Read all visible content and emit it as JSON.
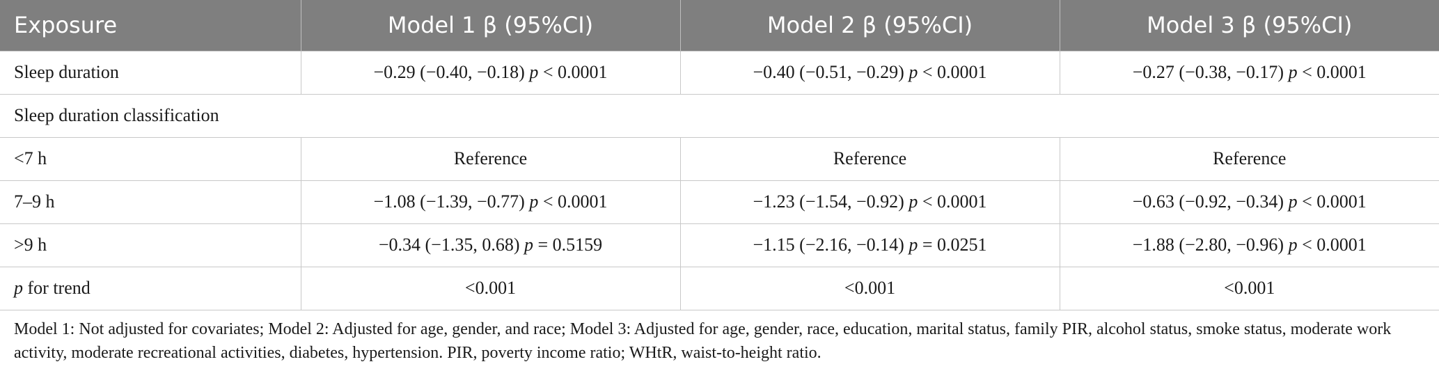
{
  "header": {
    "exposure": "Exposure",
    "model1": "Model 1 β (95%CI)",
    "model2": "Model 2 β (95%CI)",
    "model3": "Model 3 β (95%CI)"
  },
  "rows": {
    "sleep_duration": {
      "label": "Sleep duration",
      "m1": "−0.29 (−0.40, −0.18) p < 0.0001",
      "m2": "−0.40 (−0.51, −0.29) p < 0.0001",
      "m3": "−0.27 (−0.38, −0.17) p < 0.0001"
    },
    "classification": {
      "label": "Sleep duration classification"
    },
    "lt7": {
      "label": "<7 h",
      "m1": "Reference",
      "m2": "Reference",
      "m3": "Reference"
    },
    "r7to9": {
      "label": "7–9 h",
      "m1": "−1.08 (−1.39, −0.77) p < 0.0001",
      "m2": "−1.23 (−1.54, −0.92) p < 0.0001",
      "m3": "−0.63 (−0.92, −0.34) p < 0.0001"
    },
    "gt9": {
      "label": ">9 h",
      "m1": "−0.34 (−1.35, 0.68) p = 0.5159",
      "m2": "−1.15 (−2.16, −0.14) p = 0.0251",
      "m3": "−1.88 (−2.80, −0.96) p < 0.0001"
    },
    "trend": {
      "label_p": "p",
      "label_rest": " for trend",
      "m1": "<0.001",
      "m2": "<0.001",
      "m3": "<0.001"
    }
  },
  "footnote": "Model 1: Not adjusted for covariates; Model 2: Adjusted for age, gender, and race; Model 3: Adjusted for age, gender, race, education, marital status, family PIR, alcohol status, smoke status, moderate work activity, moderate recreational activities, diabetes, hypertension. PIR, poverty income ratio; WHtR, waist-to-height ratio."
}
